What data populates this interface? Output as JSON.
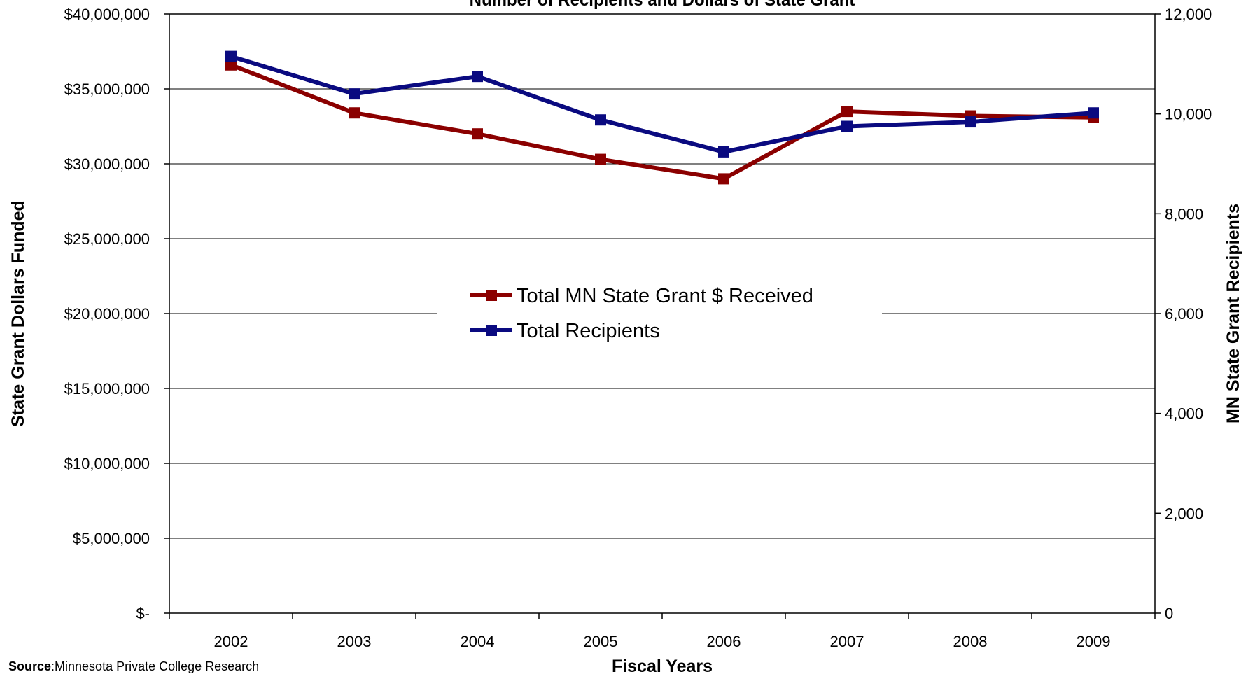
{
  "chart_data": {
    "type": "line",
    "title": "Number of Recipients and Dollars of State Grant",
    "xlabel": "Fiscal Years",
    "ylabel_left": "State Grant Dollars Funded",
    "ylabel_right": "MN State Grant Recipients",
    "categories": [
      "2002",
      "2003",
      "2004",
      "2005",
      "2006",
      "2007",
      "2008",
      "2009"
    ],
    "ylim_left": [
      0,
      40000000
    ],
    "ylim_right": [
      0,
      12000
    ],
    "yticks_left": [
      "$-",
      "$5,000,000",
      "$10,000,000",
      "$15,000,000",
      "$20,000,000",
      "$25,000,000",
      "$30,000,000",
      "$35,000,000",
      "$40,000,000"
    ],
    "yticks_right": [
      "0",
      "2,000",
      "4,000",
      "6,000",
      "8,000",
      "10,000",
      "12,000"
    ],
    "grid": true,
    "legend_position": "center",
    "series": [
      {
        "name": "Total MN State Grant $ Received",
        "axis": "left",
        "color": "#8B0000",
        "values": [
          36600000,
          33400000,
          32000000,
          30300000,
          29000000,
          33500000,
          33200000,
          33100000
        ]
      },
      {
        "name": "Total Recipients",
        "axis": "right",
        "color": "#0A0A80",
        "values": [
          11150,
          10400,
          10750,
          9880,
          9240,
          9750,
          9840,
          10020
        ]
      }
    ]
  },
  "source": {
    "label": "Source",
    "text": ":Minnesota Private College Research"
  }
}
